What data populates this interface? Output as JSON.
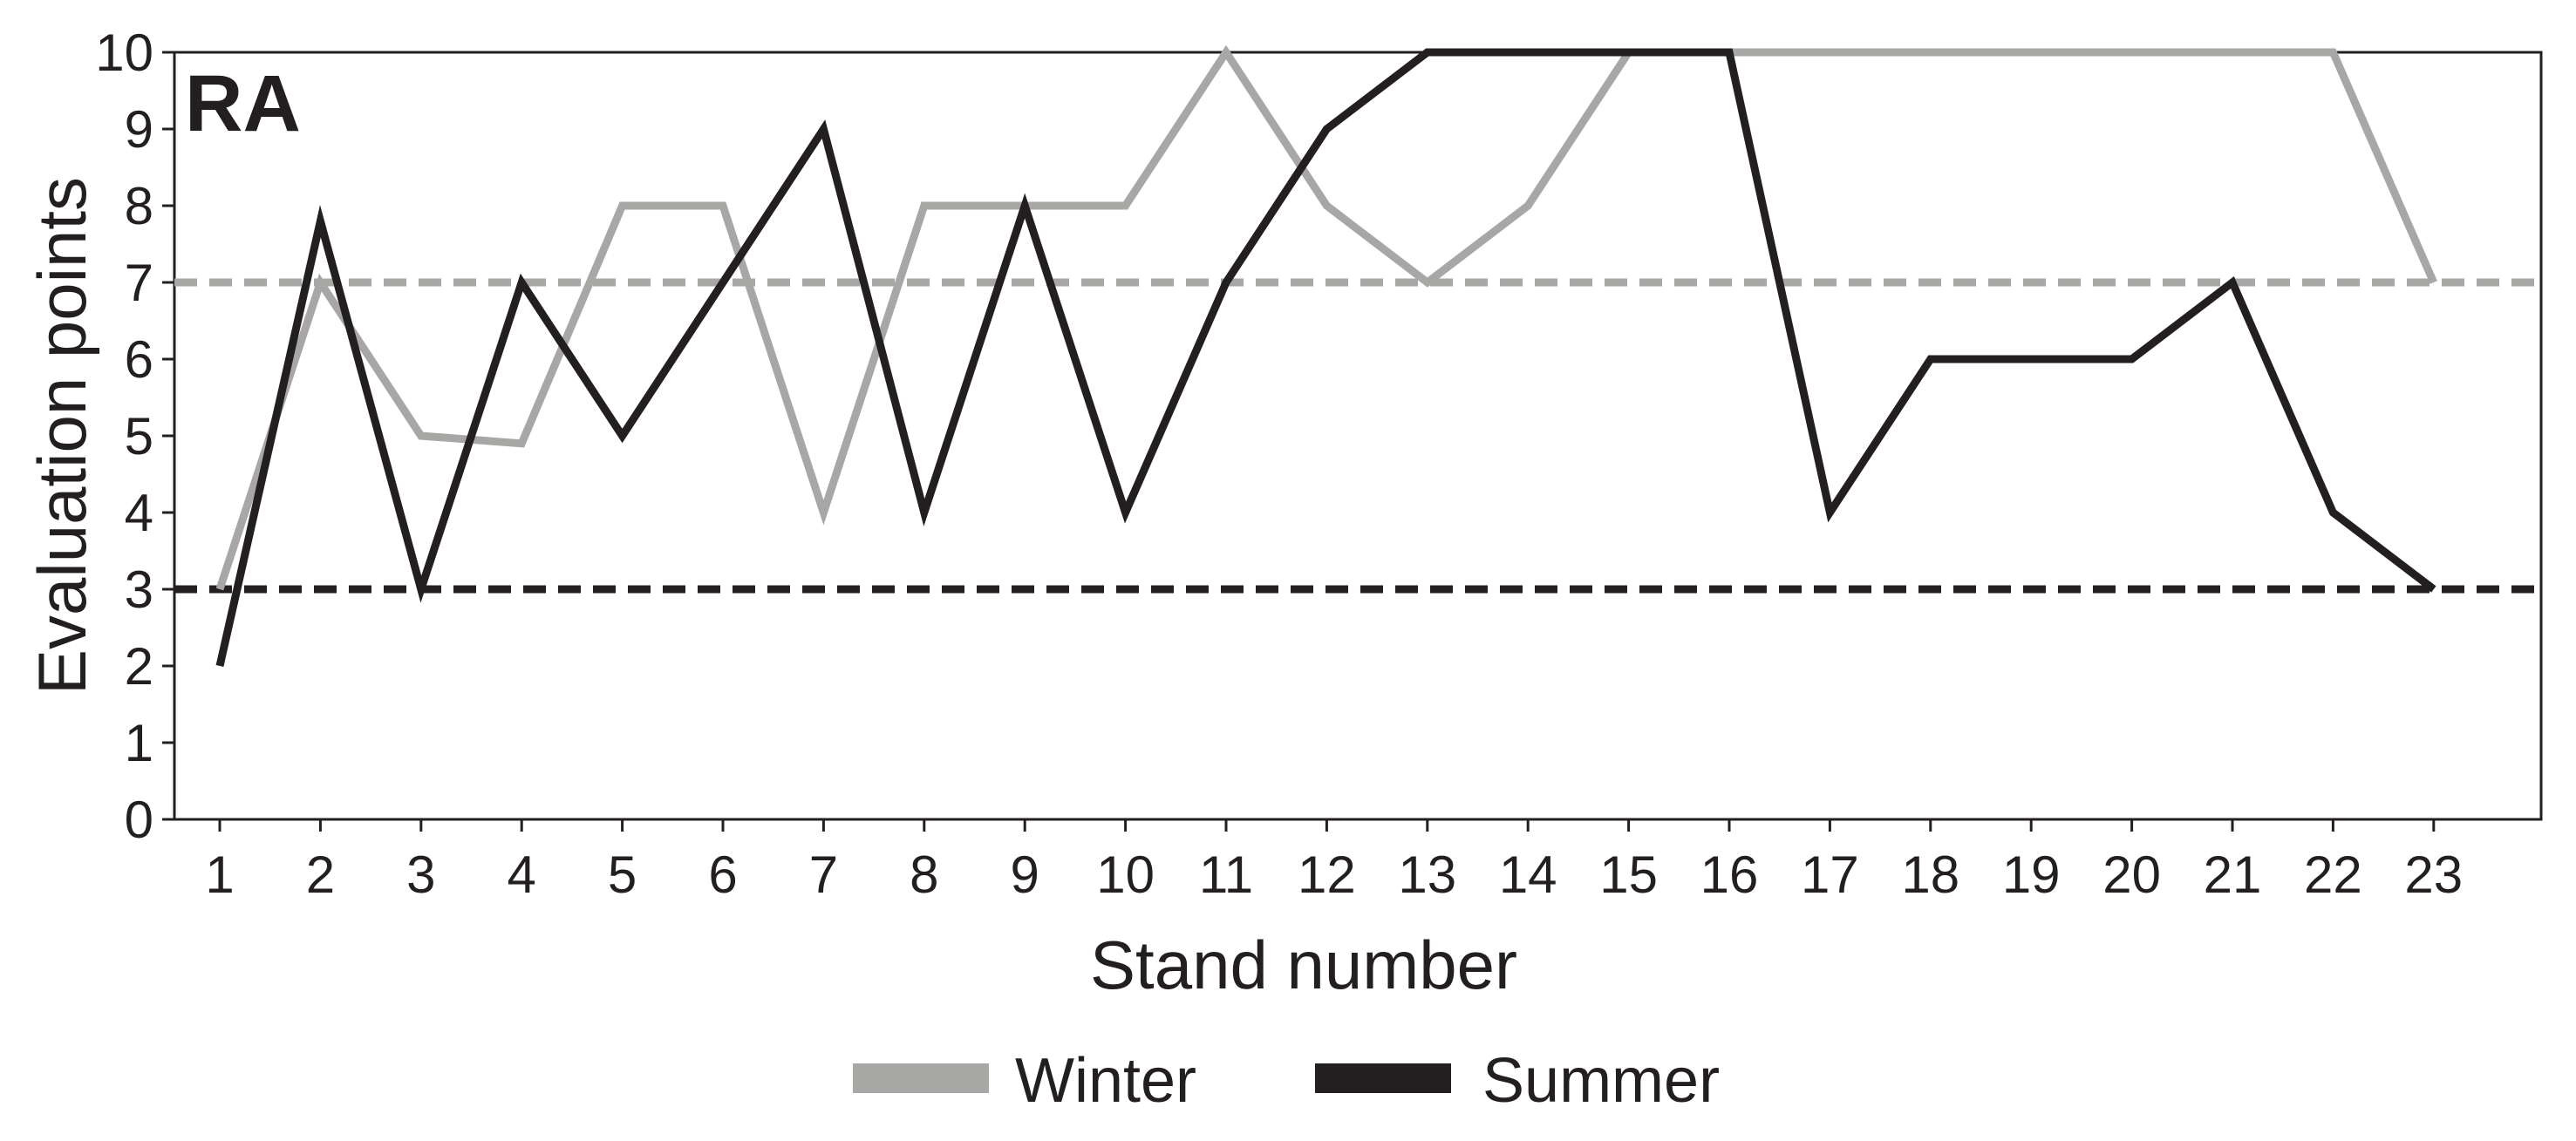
{
  "chart_data": {
    "type": "line",
    "panel_label": "RA",
    "xlabel": "Stand number",
    "ylabel": "Evaluation points",
    "x": [
      1,
      2,
      3,
      4,
      5,
      6,
      7,
      8,
      9,
      10,
      11,
      12,
      13,
      14,
      15,
      16,
      17,
      18,
      19,
      20,
      21,
      22,
      23
    ],
    "xticks": [
      "1",
      "2",
      "3",
      "4",
      "5",
      "6",
      "7",
      "8",
      "9",
      "10",
      "11",
      "12",
      "13",
      "14",
      "15",
      "16",
      "17",
      "18",
      "19",
      "20",
      "21",
      "22",
      "23"
    ],
    "yticks": [
      "0",
      "1",
      "2",
      "3",
      "4",
      "5",
      "6",
      "7",
      "8",
      "9",
      "10"
    ],
    "ylim": [
      0,
      10
    ],
    "grid": false,
    "legend_position": "bottom-center",
    "series": [
      {
        "name": "Winter",
        "color": "#a7a7a5",
        "values": [
          3,
          7,
          5,
          4.9,
          8,
          8,
          4,
          8,
          8,
          8,
          10,
          8,
          7,
          8,
          10,
          10,
          10,
          10,
          10,
          10,
          10,
          10,
          7
        ],
        "reference_line": 7
      },
      {
        "name": "Summer",
        "color": "#231f20",
        "values": [
          2,
          7.8,
          3,
          7,
          5,
          7,
          9,
          4,
          8,
          4,
          7,
          9,
          10,
          10,
          10,
          10,
          4,
          6,
          6,
          6,
          7,
          4,
          3
        ],
        "reference_line": 3
      }
    ]
  }
}
